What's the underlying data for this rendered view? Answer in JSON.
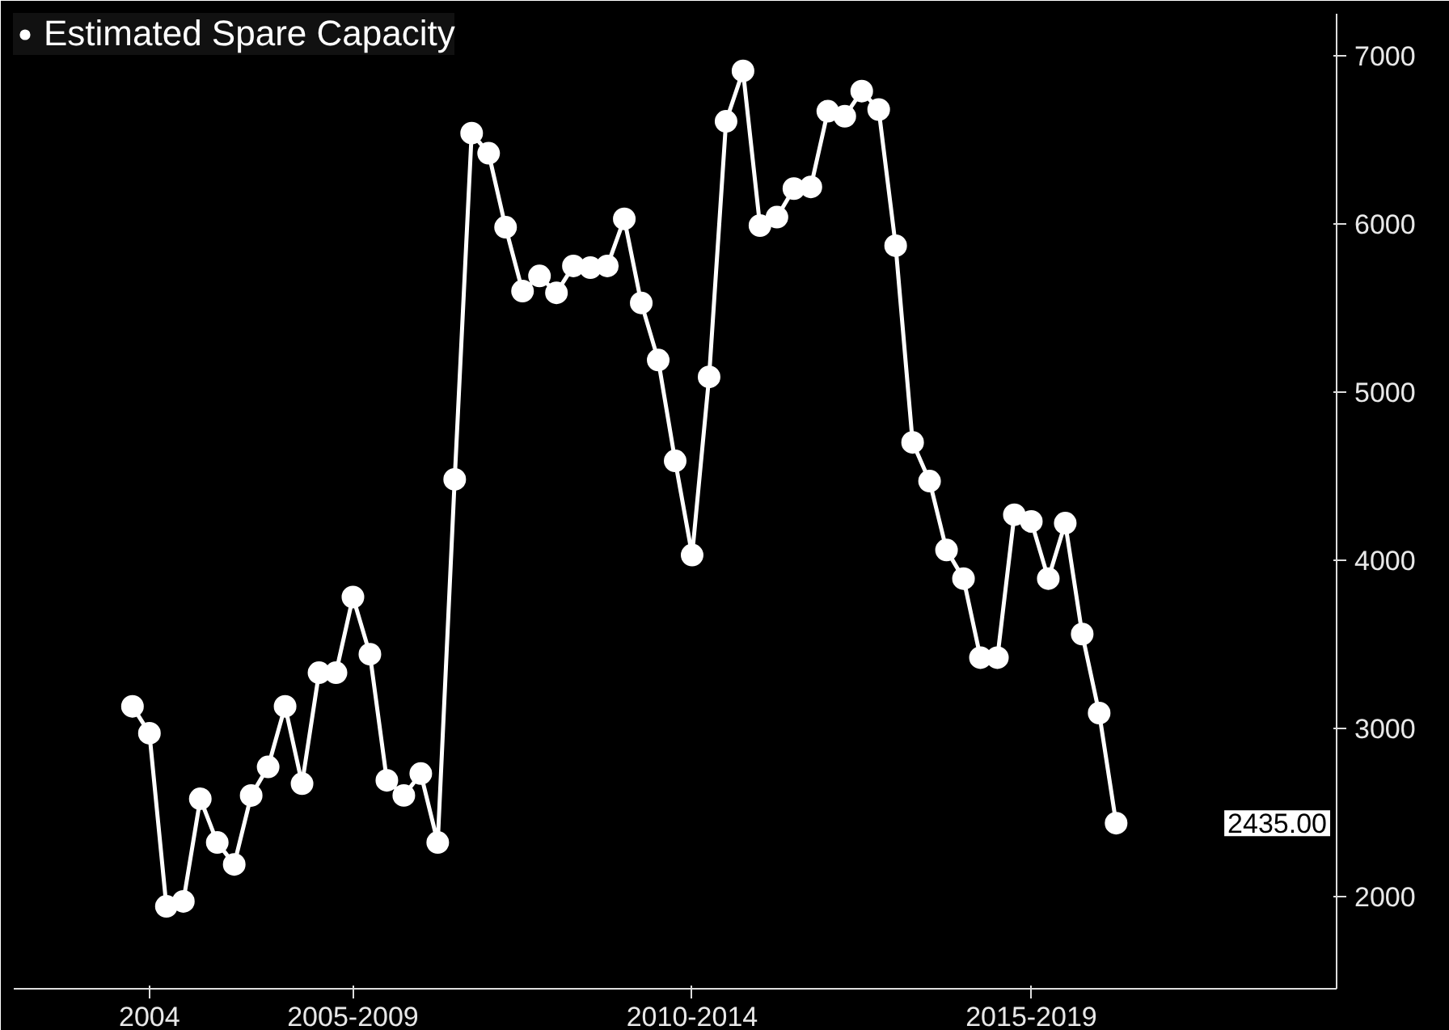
{
  "chart_data": {
    "type": "line",
    "legend": "top left",
    "marker": "circle",
    "grid": false,
    "categories": [
      null,
      "2004",
      null,
      null,
      null,
      null,
      null,
      null,
      null,
      null,
      null,
      null,
      null,
      "2005-2009",
      null,
      null,
      null,
      null,
      null,
      null,
      null,
      null,
      null,
      null,
      null,
      null,
      null,
      null,
      null,
      null,
      null,
      null,
      null,
      "2010-2014",
      null,
      null,
      null,
      null,
      null,
      null,
      null,
      null,
      null,
      null,
      null,
      null,
      null,
      null,
      null,
      null,
      null,
      null,
      null,
      "2015-2019",
      null,
      null,
      null,
      null,
      null
    ],
    "series": [
      {
        "name": "Estimated Spare Capacity",
        "color": "#ffffff",
        "values": [
          3130,
          2970,
          1940,
          1970,
          2580,
          2320,
          2190,
          2600,
          2770,
          3130,
          2670,
          3330,
          3330,
          3780,
          3440,
          2690,
          2600,
          2730,
          2320,
          4480,
          6540,
          6420,
          5980,
          5600,
          5690,
          5590,
          5750,
          5740,
          5750,
          6030,
          5530,
          5190,
          4590,
          4030,
          5090,
          6610,
          6910,
          5990,
          6040,
          6210,
          6220,
          6670,
          6640,
          6790,
          6680,
          5870,
          4700,
          4470,
          4060,
          3890,
          3420,
          3420,
          4270,
          4230,
          3890,
          4220,
          3560,
          3090,
          2435
        ]
      }
    ],
    "ylim": [
      1450,
      7250
    ],
    "yticks": [
      2000,
      3000,
      4000,
      5000,
      6000,
      7000
    ],
    "annotations": [
      "2435.00"
    ]
  }
}
